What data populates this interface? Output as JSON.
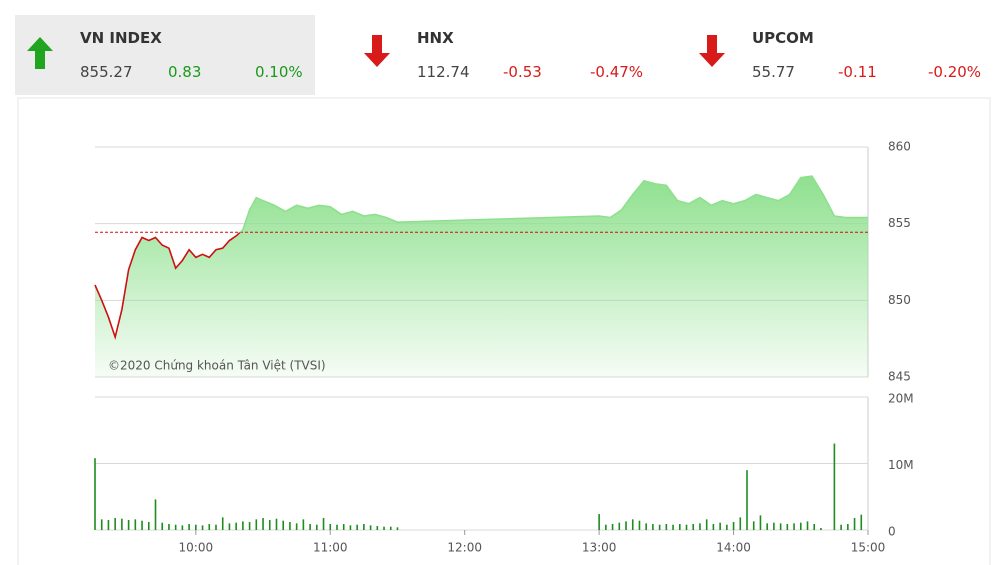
{
  "indices": [
    {
      "name": "VN INDEX",
      "value": "855.27",
      "change": "0.83",
      "change_pct": "0.10%"
    },
    {
      "name": "HNX",
      "value": "112.74",
      "change": "-0.53",
      "change_pct": "-0.47%"
    },
    {
      "name": "UPCOM",
      "value": "55.77",
      "change": "-0.11",
      "change_pct": "-0.20%"
    }
  ],
  "chart_data": [
    {
      "type": "area",
      "annotation": "©2020 Chứng khoán Tân Việt (TVSI)",
      "x": [
        "09:15",
        "09:18",
        "09:21",
        "09:24",
        "09:27",
        "09:30",
        "09:33",
        "09:36",
        "09:39",
        "09:42",
        "09:45",
        "09:48",
        "09:51",
        "09:54",
        "09:57",
        "10:00",
        "10:03",
        "10:06",
        "10:09",
        "10:12",
        "10:15",
        "10:18",
        "10:21",
        "10:24",
        "10:27",
        "10:30",
        "10:35",
        "10:40",
        "10:45",
        "10:50",
        "10:55",
        "11:00",
        "11:05",
        "11:10",
        "11:15",
        "11:20",
        "11:25",
        "11:30",
        "13:00",
        "13:05",
        "13:10",
        "13:15",
        "13:20",
        "13:25",
        "13:30",
        "13:35",
        "13:40",
        "13:45",
        "13:50",
        "13:55",
        "14:00",
        "14:05",
        "14:10",
        "14:15",
        "14:20",
        "14:25",
        "14:30",
        "14:35",
        "14:40",
        "14:45",
        "14:50",
        "15:00"
      ],
      "values": [
        851.0,
        850.0,
        848.9,
        847.6,
        849.4,
        852.0,
        853.3,
        854.1,
        853.9,
        854.1,
        853.6,
        853.4,
        852.1,
        852.6,
        853.3,
        852.8,
        853.0,
        852.8,
        853.3,
        853.4,
        853.9,
        854.2,
        854.6,
        855.9,
        856.7,
        856.5,
        856.2,
        855.8,
        856.2,
        856.0,
        856.2,
        856.1,
        855.6,
        855.8,
        855.5,
        855.6,
        855.4,
        855.1,
        855.5,
        855.4,
        855.9,
        856.9,
        857.8,
        857.6,
        857.5,
        856.5,
        856.3,
        856.7,
        856.2,
        856.5,
        856.3,
        856.5,
        856.9,
        856.7,
        856.5,
        856.9,
        858.0,
        858.1,
        856.9,
        855.5,
        855.4,
        855.4
      ],
      "reference": 854.44,
      "color": "#8ee08e",
      "below_color": "#cc1111",
      "reference_color": "#cc1111",
      "xlim": [
        "09:15",
        "15:00"
      ],
      "ylim": [
        845,
        860
      ],
      "yticks": [
        845,
        850,
        855,
        860
      ],
      "grid": true
    },
    {
      "type": "bar",
      "x": [
        "09:15",
        "09:18",
        "09:21",
        "09:24",
        "09:27",
        "09:30",
        "09:33",
        "09:36",
        "09:39",
        "09:42",
        "09:45",
        "09:48",
        "09:51",
        "09:54",
        "09:57",
        "10:00",
        "10:03",
        "10:06",
        "10:09",
        "10:12",
        "10:15",
        "10:18",
        "10:21",
        "10:24",
        "10:27",
        "10:30",
        "10:33",
        "10:36",
        "10:39",
        "10:42",
        "10:45",
        "10:48",
        "10:51",
        "10:54",
        "10:57",
        "11:00",
        "11:03",
        "11:06",
        "11:09",
        "11:12",
        "11:15",
        "11:18",
        "11:21",
        "11:24",
        "11:27",
        "11:30",
        "13:00",
        "13:03",
        "13:06",
        "13:09",
        "13:12",
        "13:15",
        "13:18",
        "13:21",
        "13:24",
        "13:27",
        "13:30",
        "13:33",
        "13:36",
        "13:39",
        "13:42",
        "13:45",
        "13:48",
        "13:51",
        "13:54",
        "13:57",
        "14:00",
        "14:03",
        "14:06",
        "14:09",
        "14:12",
        "14:15",
        "14:18",
        "14:21",
        "14:24",
        "14:27",
        "14:30",
        "14:33",
        "14:36",
        "14:39",
        "14:45",
        "14:48",
        "14:51",
        "14:54",
        "14:57"
      ],
      "values": [
        10800000,
        1600000,
        1500000,
        1800000,
        1700000,
        1500000,
        1600000,
        1400000,
        1200000,
        4600000,
        1100000,
        900000,
        800000,
        700000,
        900000,
        800000,
        700000,
        900000,
        800000,
        1900000,
        1000000,
        1100000,
        1300000,
        1200000,
        1600000,
        1800000,
        1500000,
        1700000,
        1400000,
        1200000,
        1000000,
        1600000,
        900000,
        800000,
        1800000,
        900000,
        800000,
        900000,
        700000,
        800000,
        900000,
        700000,
        600000,
        500000,
        500000,
        400000,
        2400000,
        800000,
        900000,
        1100000,
        1300000,
        1600000,
        1400000,
        1000000,
        900000,
        800000,
        900000,
        800000,
        900000,
        800000,
        900000,
        1000000,
        1600000,
        900000,
        1100000,
        800000,
        1200000,
        1900000,
        9000000,
        1300000,
        2200000,
        1000000,
        1100000,
        1000000,
        900000,
        1000000,
        1100000,
        1300000,
        900000,
        300000,
        13000000,
        800000,
        900000,
        1800000,
        2300000
      ],
      "color": "#1e8c1e",
      "xlim": [
        "09:15",
        "15:00"
      ],
      "xticks": [
        "10:00",
        "11:00",
        "12:00",
        "13:00",
        "14:00",
        "15:00"
      ],
      "ylim": [
        0,
        20000000
      ],
      "yticks": [
        0,
        {
          "value": 10000000,
          "label": "10M"
        },
        {
          "value": 20000000,
          "label": "20M"
        }
      ],
      "grid": true
    }
  ]
}
